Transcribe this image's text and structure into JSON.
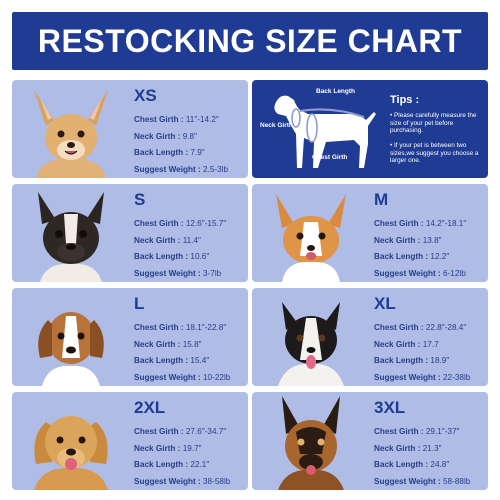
{
  "title": "RESTOCKING SIZE CHART",
  "colors": {
    "header_bg": "#1f3b93",
    "card_bg": "#aebce6",
    "text": "#2a3f88"
  },
  "diagram": {
    "back_length": "Back Length",
    "neck_girth": "Neck Girth",
    "chest_girth": "Chest Girth"
  },
  "tips": {
    "title": "Tips :",
    "items": [
      "• Please carefully measure the size of your pet before purchasing.",
      "• If your pet is between two sizes,we suggest you choose a larger one."
    ]
  },
  "sizes": [
    {
      "size": "XS",
      "dog": "chihuahua-photo",
      "chest_label": "Chest Girth : ",
      "chest": "11\"-14.2\"",
      "neck_label": "Neck Girth : ",
      "neck": "9.8\"",
      "back_label": "Back Length : ",
      "back": "7.9\"",
      "weight_label": "Suggest Weight : ",
      "weight": "2.5-3lb"
    },
    {
      "size": "S",
      "dog": "french-bulldog-photo",
      "chest_label": "Chest Girth : ",
      "chest": "12.6\"-15.7\"",
      "neck_label": "Neck Girth : ",
      "neck": "11.4\"",
      "back_label": "Back Length : ",
      "back": "10.6\"",
      "weight_label": "Suggest Weight : ",
      "weight": "3-7lb"
    },
    {
      "size": "M",
      "dog": "corgi-photo",
      "chest_label": "Chest Girth : ",
      "chest": "14.2\"-18.1\"",
      "neck_label": "Neck Girth : ",
      "neck": "13.8\"",
      "back_label": "Back Length : ",
      "back": "12.2\"",
      "weight_label": "Suggest Weight : ",
      "weight": "6-12lb"
    },
    {
      "size": "L",
      "dog": "beagle-photo",
      "chest_label": "Chest Girth : ",
      "chest": "18.1\"-22.8\"",
      "neck_label": "Neck Girth : ",
      "neck": "15.8\"",
      "back_label": "Back Length : ",
      "back": "15.4\"",
      "weight_label": "Suggest Weight : ",
      "weight": "10-22lb"
    },
    {
      "size": "XL",
      "dog": "border-collie-photo",
      "chest_label": "Chest Girth : ",
      "chest": "22.8\"-28.4\"",
      "neck_label": "Neck Girth : ",
      "neck": "17.7",
      "back_label": "Back Length : ",
      "back": "18.9\"",
      "weight_label": "Suggest Weight : ",
      "weight": "22-38lb"
    },
    {
      "size": "2XL",
      "dog": "golden-retriever-photo",
      "chest_label": "Chest Girth : ",
      "chest": "27.6\"-34.7\"",
      "neck_label": "Neck Girth : ",
      "neck": "19.7\"",
      "back_label": "Back Length : ",
      "back": "22.1\"",
      "weight_label": "Suggest Weight : ",
      "weight": "38-58lb"
    },
    {
      "size": "3XL",
      "dog": "german-shepherd-photo",
      "chest_label": "Chest Girth : ",
      "chest": "29.1\"-37\"",
      "neck_label": "Neck Girth : ",
      "neck": "21.3\"",
      "back_label": "Back Length : ",
      "back": "24.8\"",
      "weight_label": "Suggest Weight : ",
      "weight": "58-88lb"
    }
  ]
}
